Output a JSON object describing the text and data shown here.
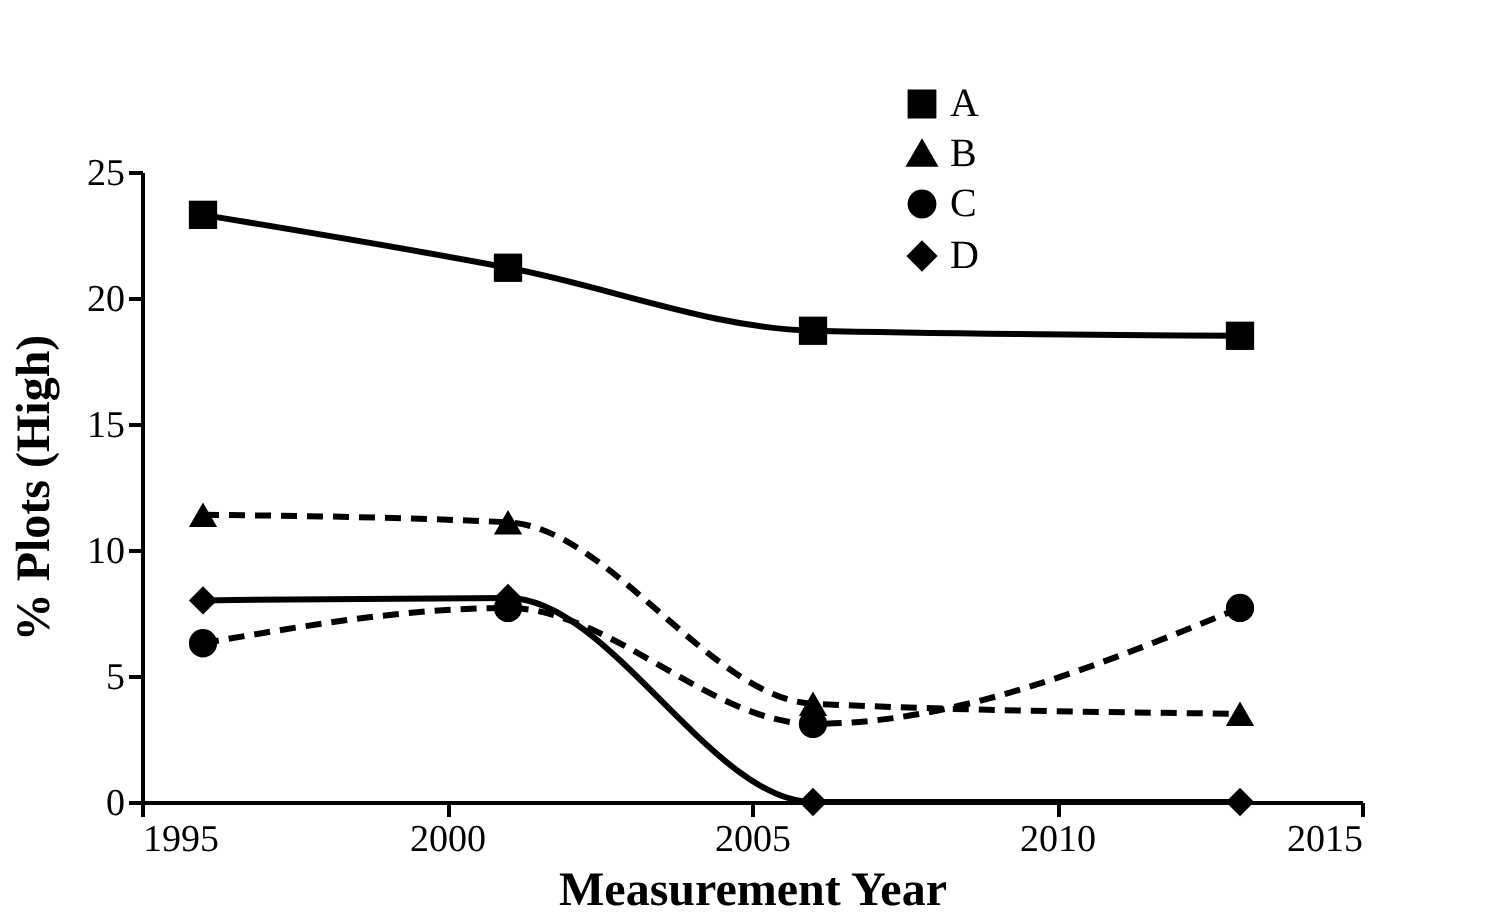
{
  "chart_data": {
    "type": "line",
    "xlabel": "Measurement Year",
    "ylabel": "%  Plots (High)",
    "x": [
      1996,
      2001,
      2006,
      2013
    ],
    "series": [
      {
        "name": "A",
        "color": "#000000",
        "marker": "square",
        "line_style": "solid",
        "values": [
          23.3,
          21.2,
          18.7,
          18.5
        ]
      },
      {
        "name": "B",
        "color": "#000000",
        "marker": "triangle",
        "line_style": "dashed",
        "values": [
          11.4,
          11.1,
          3.9,
          3.5
        ]
      },
      {
        "name": "C",
        "color": "#000000",
        "marker": "circle",
        "line_style": "dashed",
        "values": [
          6.3,
          7.7,
          3.1,
          7.7
        ]
      },
      {
        "name": "D",
        "color": "#000000",
        "marker": "diamond",
        "line_style": "solid",
        "values": [
          8.0,
          8.1,
          0,
          0
        ]
      }
    ],
    "xlim": [
      1995,
      2015
    ],
    "xticks": [
      1995,
      2000,
      2005,
      2010,
      2015
    ],
    "ylim": [
      0,
      25
    ],
    "yticks": [
      0,
      5,
      10,
      15,
      20,
      25
    ],
    "grid": false,
    "legend": "top right"
  }
}
